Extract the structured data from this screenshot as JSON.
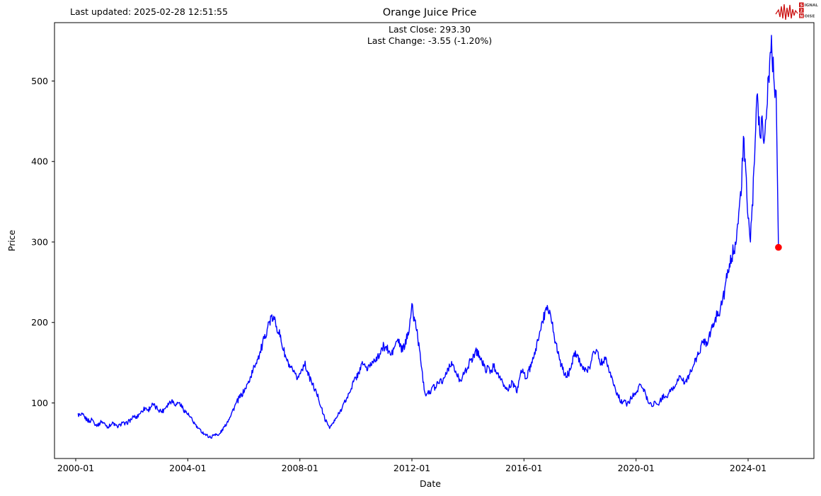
{
  "header": {
    "last_updated": "Last updated: 2025-02-28 12:51:55",
    "title": "Orange Juice Price",
    "subtitle_line1": "Last Close: 293.30",
    "subtitle_line2": "Last Change: -3.55 (-1.20%)"
  },
  "logo": {
    "s": "S",
    "ignal": "IGNAL",
    "two": "2",
    "n": "N",
    "oise": "OISE",
    "accent_color": "#cc1111"
  },
  "chart_data": {
    "type": "line",
    "title": "Orange Juice Price",
    "xlabel": "Date",
    "ylabel": "Price",
    "x_tick_labels": [
      "2000-01",
      "2004-01",
      "2008-01",
      "2012-01",
      "2016-01",
      "2020-01",
      "2024-01"
    ],
    "x_tick_years": [
      2000,
      2004,
      2008,
      2012,
      2016,
      2020,
      2024
    ],
    "y_tick_labels": [
      "100",
      "200",
      "300",
      "400",
      "500"
    ],
    "y_ticks": [
      100,
      200,
      300,
      400,
      500
    ],
    "ylim": [
      31,
      573
    ],
    "xlim_years": [
      1999.25,
      2026.1
    ],
    "grid": false,
    "legend": "none",
    "line_color": "#0000ff",
    "marker_color": "#ff0000",
    "last_close": 293.3,
    "last_change_text": "-3.55 (-1.20%)",
    "series": [
      {
        "name": "Orange Juice Price",
        "x_start_year": 2000.0833,
        "x_step_years": 0.0833333,
        "values_monthly": [
          86,
          84,
          85,
          81,
          79,
          77,
          80,
          75,
          72,
          74,
          77,
          75,
          72,
          70,
          73,
          75,
          72,
          70,
          73,
          76,
          73,
          75,
          78,
          80,
          83,
          82,
          86,
          89,
          92,
          94,
          91,
          95,
          98,
          95,
          93,
          91,
          89,
          93,
          97,
          100,
          103,
          101,
          98,
          101,
          97,
          93,
          89,
          86,
          82,
          78,
          74,
          70,
          67,
          64,
          62,
          60,
          58,
          57,
          60,
          62,
          59,
          63,
          67,
          72,
          77,
          83,
          89,
          95,
          101,
          106,
          110,
          114,
          119,
          126,
          133,
          141,
          149,
          156,
          163,
          172,
          182,
          193,
          201,
          206,
          203,
          197,
          188,
          177,
          166,
          156,
          149,
          143,
          139,
          134,
          131,
          136,
          143,
          149,
          141,
          133,
          126,
          119,
          113,
          106,
          96,
          86,
          78,
          73,
          70,
          74,
          78,
          83,
          88,
          94,
          100,
          105,
          111,
          119,
          126,
          131,
          137,
          143,
          149,
          146,
          141,
          146,
          151,
          156,
          153,
          159,
          166,
          171,
          169,
          164,
          159,
          166,
          173,
          179,
          171,
          165,
          172,
          182,
          198,
          220,
          205,
          192,
          172,
          148,
          124,
          110,
          116,
          112,
          121,
          119,
          126,
          129,
          126,
          133,
          139,
          146,
          151,
          143,
          136,
          131,
          129,
          136,
          141,
          146,
          151,
          156,
          163,
          165,
          158,
          151,
          146,
          141,
          143,
          139,
          146,
          141,
          136,
          129,
          123,
          119,
          116,
          121,
          126,
          119,
          113,
          131,
          139,
          136,
          131,
          139,
          146,
          153,
          166,
          179,
          191,
          201,
          211,
          222,
          214,
          199,
          184,
          171,
          159,
          147,
          138,
          133,
          136,
          143,
          156,
          165,
          159,
          151,
          145,
          140,
          139,
          143,
          156,
          163,
          168,
          156,
          149,
          153,
          158,
          147,
          137,
          127,
          119,
          111,
          105,
          100,
          103,
          97,
          101,
          106,
          110,
          112,
          118,
          125,
          119,
          111,
          104,
          99,
          97,
          102,
          97,
          101,
          105,
          109,
          106,
          111,
          116,
          119,
          123,
          129,
          133,
          128,
          125,
          131,
          136,
          141,
          149,
          156,
          163,
          171,
          179,
          173,
          181,
          189,
          196,
          206,
          211,
          216,
          226,
          241,
          256,
          269,
          281,
          292,
          307,
          332,
          362,
          425,
          385,
          330,
          303,
          350,
          420,
          490,
          430,
          455,
          425,
          470,
          505,
          549,
          505,
          488,
          293.3
        ]
      }
    ]
  }
}
